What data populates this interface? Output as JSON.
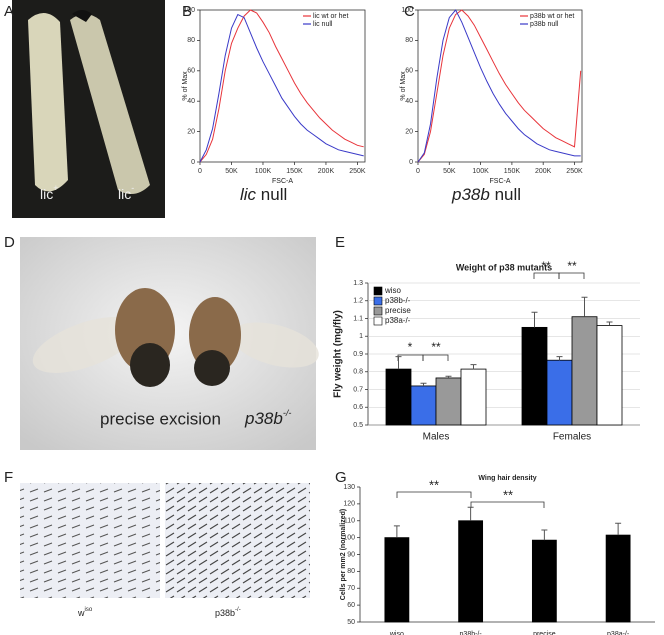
{
  "panels": {
    "labels": [
      "A",
      "B",
      "C",
      "D",
      "E",
      "F",
      "G"
    ],
    "lic_plus": {
      "base": "lic",
      "sup": "+"
    },
    "lic_minus": {
      "base": "lic",
      "sup": "-"
    },
    "lic_caption": {
      "italic": "lic",
      "rest": "null"
    },
    "p38b_caption": {
      "italic": "p38b",
      "rest": "null"
    },
    "precise_excision": "precise excision",
    "p38b_fly": {
      "base": "p38b",
      "sup": "-/-"
    },
    "wiso_label": {
      "base": "w",
      "sup": "iso"
    },
    "p38b_wing": {
      "base": "p38b",
      "sup": "-/-"
    }
  },
  "chart_data": [
    {
      "type": "line",
      "ylabel": "% of Max",
      "xlabel": "FSC-A",
      "x": [
        0,
        10000,
        20000,
        30000,
        40000,
        50000,
        60000,
        70000,
        80000,
        90000,
        100000,
        110000,
        120000,
        130000,
        140000,
        150000,
        160000,
        170000,
        180000,
        190000,
        200000,
        210000,
        220000,
        230000,
        240000,
        250000,
        260000
      ],
      "series": [
        {
          "name": "lic wt or het",
          "color": "#e8343a",
          "values": [
            0,
            5,
            15,
            35,
            60,
            78,
            88,
            96,
            100,
            98,
            92,
            85,
            76,
            68,
            60,
            52,
            45,
            39,
            34,
            29,
            25,
            21,
            18,
            15,
            13,
            11,
            10
          ]
        },
        {
          "name": "lic null",
          "color": "#3a3ac8",
          "values": [
            0,
            8,
            22,
            45,
            70,
            88,
            97,
            95,
            85,
            75,
            66,
            58,
            50,
            42,
            36,
            30,
            25,
            21,
            18,
            15,
            12,
            10,
            8,
            7,
            6,
            5,
            4
          ]
        }
      ],
      "xlim": [
        0,
        262000
      ],
      "ylim": [
        0,
        100
      ],
      "xticks": [
        0,
        {
          "value": 50000,
          "label": "50K"
        },
        {
          "value": 100000,
          "label": "100K"
        },
        {
          "value": 150000,
          "label": "150K"
        },
        {
          "value": 200000,
          "label": "200K"
        },
        {
          "value": 250000,
          "label": "250K"
        }
      ],
      "yticks": [
        0,
        20,
        40,
        60,
        80,
        100
      ]
    },
    {
      "type": "line",
      "ylabel": "% of Max",
      "xlabel": "FSC-A",
      "x": [
        0,
        10000,
        20000,
        30000,
        40000,
        50000,
        60000,
        70000,
        80000,
        90000,
        100000,
        110000,
        120000,
        130000,
        140000,
        150000,
        160000,
        170000,
        180000,
        190000,
        200000,
        210000,
        220000,
        230000,
        240000,
        250000,
        260000
      ],
      "series": [
        {
          "name": "p38b wt or het",
          "color": "#e8343a",
          "values": [
            0,
            5,
            20,
            45,
            70,
            88,
            97,
            100,
            96,
            90,
            82,
            74,
            66,
            58,
            51,
            45,
            39,
            34,
            30,
            26,
            22,
            19,
            16,
            14,
            12,
            10,
            60
          ]
        },
        {
          "name": "p38b null",
          "color": "#3a3ac8",
          "values": [
            0,
            6,
            25,
            55,
            80,
            95,
            100,
            92,
            82,
            72,
            62,
            53,
            45,
            38,
            32,
            27,
            22,
            18,
            15,
            12,
            10,
            8,
            7,
            6,
            5,
            4,
            4
          ]
        }
      ],
      "xlim": [
        0,
        262000
      ],
      "ylim": [
        0,
        100
      ],
      "xticks": [
        0,
        {
          "value": 50000,
          "label": "50K"
        },
        {
          "value": 100000,
          "label": "100K"
        },
        {
          "value": 150000,
          "label": "150K"
        },
        {
          "value": 200000,
          "label": "200K"
        },
        {
          "value": 250000,
          "label": "250K"
        }
      ],
      "yticks": [
        0,
        20,
        40,
        60,
        80,
        100
      ]
    },
    {
      "type": "bar",
      "title": "Weight of p38 mutants",
      "ylabel": "Fly weight (mg/fly)",
      "categories": [
        "Males",
        "Females"
      ],
      "series": [
        {
          "name": "wiso",
          "color": "#000000",
          "values": [
            0.815,
            1.05
          ],
          "errors": [
            0.07,
            0.085
          ]
        },
        {
          "name": "p38b-/-",
          "color": "#3a6ee8",
          "values": [
            0.72,
            0.865
          ],
          "errors": [
            0.015,
            0.02
          ]
        },
        {
          "name": "precise",
          "color": "#999999",
          "values": [
            0.765,
            1.11
          ],
          "errors": [
            0.01,
            0.11
          ]
        },
        {
          "name": "p38a-/-",
          "color": "#ffffff",
          "values": [
            0.815,
            1.06
          ],
          "errors": [
            0.025,
            0.02
          ]
        }
      ],
      "ylim": [
        0.5,
        1.3
      ],
      "yticks": [
        0.5,
        0.6,
        0.7,
        0.8,
        0.9,
        1,
        1.1,
        1.2,
        1.3
      ],
      "annotations": [
        "*",
        "**",
        "**",
        "**"
      ]
    },
    {
      "type": "bar",
      "title": "Wing hair density",
      "ylabel": "Cells per mm2 (normalized)",
      "categories": [
        "wiso",
        "p38b-/-",
        "precise",
        "p38a-/-"
      ],
      "values": [
        100,
        110,
        98.5,
        101.5
      ],
      "errors": [
        7,
        8,
        6,
        7
      ],
      "color": "#000000",
      "ylim": [
        50,
        130
      ],
      "yticks": [
        50,
        60,
        70,
        80,
        90,
        100,
        110,
        120,
        130
      ],
      "annotations": [
        "**",
        "**"
      ]
    }
  ]
}
